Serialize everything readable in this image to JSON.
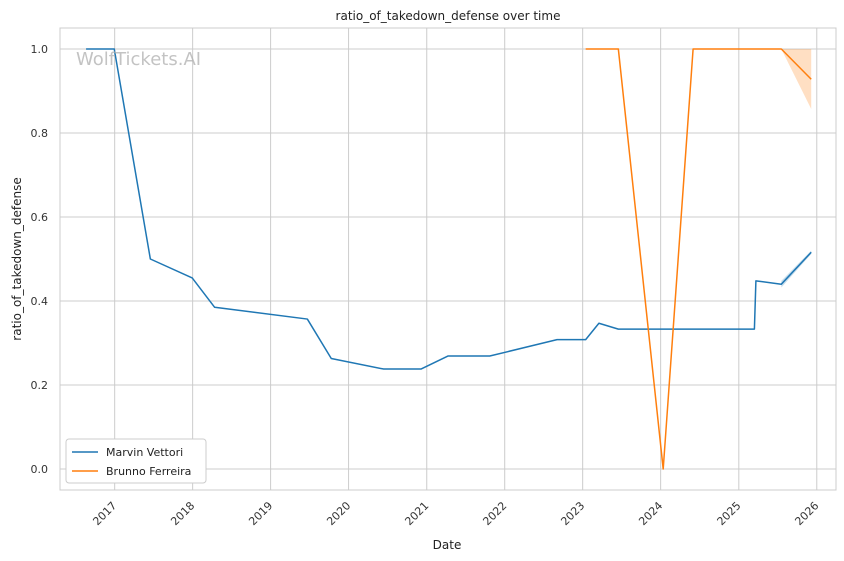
{
  "chart_data": {
    "type": "line",
    "title": "ratio_of_takedown_defense over time",
    "xlabel": "Date",
    "ylabel": "ratio_of_takedown_defense",
    "watermark": "WolfTickets.AI",
    "xlim": [
      "2016-04-20",
      "2026-04-01"
    ],
    "ylim": [
      -0.05,
      1.05
    ],
    "x_ticks": [
      "2017",
      "2018",
      "2019",
      "2020",
      "2021",
      "2022",
      "2023",
      "2024",
      "2025",
      "2026"
    ],
    "y_ticks": [
      "0.0",
      "0.2",
      "0.4",
      "0.6",
      "0.8",
      "1.0"
    ],
    "grid": true,
    "legend_position": "lower-left",
    "series": [
      {
        "name": "Marvin Vettori",
        "color": "#1f77b4",
        "points": [
          [
            "2016-08-20",
            1.0
          ],
          [
            "2016-12-30",
            1.0
          ],
          [
            "2017-06-17",
            0.5
          ],
          [
            "2017-12-30",
            0.455
          ],
          [
            "2018-04-14",
            0.385
          ],
          [
            "2019-06-22",
            0.357
          ],
          [
            "2019-10-12",
            0.263
          ],
          [
            "2020-06-13",
            0.238
          ],
          [
            "2020-12-05",
            0.238
          ],
          [
            "2021-04-10",
            0.269
          ],
          [
            "2021-10-23",
            0.269
          ],
          [
            "2022-09-03",
            0.308
          ],
          [
            "2023-01-15",
            0.308
          ],
          [
            "2023-03-18",
            0.347
          ],
          [
            "2023-06-17",
            0.333
          ],
          [
            "2025-03-15",
            0.333
          ],
          [
            "2025-03-22",
            0.448
          ],
          [
            "2025-07-19",
            0.44
          ],
          [
            "2025-12-06",
            0.516
          ]
        ],
        "band": [
          [
            "2025-07-19",
            0.432,
            0.448
          ],
          [
            "2025-12-06",
            0.512,
            0.52
          ]
        ]
      },
      {
        "name": "Brunno Ferreira",
        "color": "#ff7f0e",
        "points": [
          [
            "2023-01-15",
            1.0
          ],
          [
            "2023-06-17",
            1.0
          ],
          [
            "2024-01-13",
            0.0
          ],
          [
            "2024-06-01",
            1.0
          ],
          [
            "2025-07-19",
            1.0
          ],
          [
            "2025-12-06",
            0.928
          ]
        ],
        "band": [
          [
            "2025-07-19",
            1.0,
            1.0
          ],
          [
            "2025-12-06",
            0.857,
            1.0
          ]
        ]
      }
    ]
  }
}
